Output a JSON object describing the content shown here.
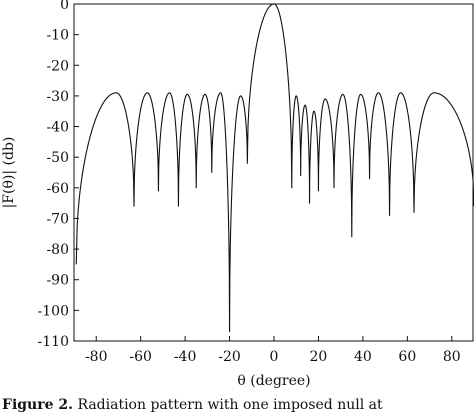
{
  "chart_data": {
    "type": "line",
    "title": "",
    "xlabel": "θ (degree)",
    "ylabel": "|F(θ)| (db)",
    "xlim": [
      -90,
      90
    ],
    "ylim": [
      -110,
      0
    ],
    "xticks": [
      -80,
      -60,
      -40,
      -20,
      0,
      20,
      40,
      60,
      80
    ],
    "yticks": [
      0,
      -10,
      -20,
      -30,
      -40,
      -50,
      -60,
      -70,
      -80,
      -90,
      -100,
      -110
    ],
    "grid": false,
    "nulls": [
      {
        "x": -89,
        "y": -85
      },
      {
        "x": -63,
        "y": -66
      },
      {
        "x": -52,
        "y": -61
      },
      {
        "x": -43,
        "y": -66
      },
      {
        "x": -35,
        "y": -60
      },
      {
        "x": -28,
        "y": -55
      },
      {
        "x": -20,
        "y": -107
      },
      {
        "x": -12,
        "y": -52
      },
      {
        "x": 8,
        "y": -60
      },
      {
        "x": 12,
        "y": -56
      },
      {
        "x": 16,
        "y": -65
      },
      {
        "x": 20,
        "y": -61
      },
      {
        "x": 27,
        "y": -60
      },
      {
        "x": 35,
        "y": -76
      },
      {
        "x": 43,
        "y": -57
      },
      {
        "x": 52,
        "y": -69
      },
      {
        "x": 63,
        "y": -68
      },
      {
        "x": 90,
        "y": -66
      }
    ],
    "peaks": [
      {
        "x": -71,
        "y": -29
      },
      {
        "x": -57,
        "y": -29
      },
      {
        "x": -47,
        "y": -29
      },
      {
        "x": -39,
        "y": -29.5
      },
      {
        "x": -31,
        "y": -29.5
      },
      {
        "x": -24,
        "y": -29
      },
      {
        "x": -15,
        "y": -30
      },
      {
        "x": 0,
        "y": 0
      },
      {
        "x": 10,
        "y": -30
      },
      {
        "x": 14,
        "y": -33
      },
      {
        "x": 18,
        "y": -35
      },
      {
        "x": 23,
        "y": -31
      },
      {
        "x": 31,
        "y": -29.5
      },
      {
        "x": 39,
        "y": -29.5
      },
      {
        "x": 47,
        "y": -29
      },
      {
        "x": 57,
        "y": -29
      },
      {
        "x": 72,
        "y": -29
      }
    ]
  },
  "caption": {
    "label": "Figure 2.",
    "text": "Radiation pattern with one imposed null at"
  }
}
